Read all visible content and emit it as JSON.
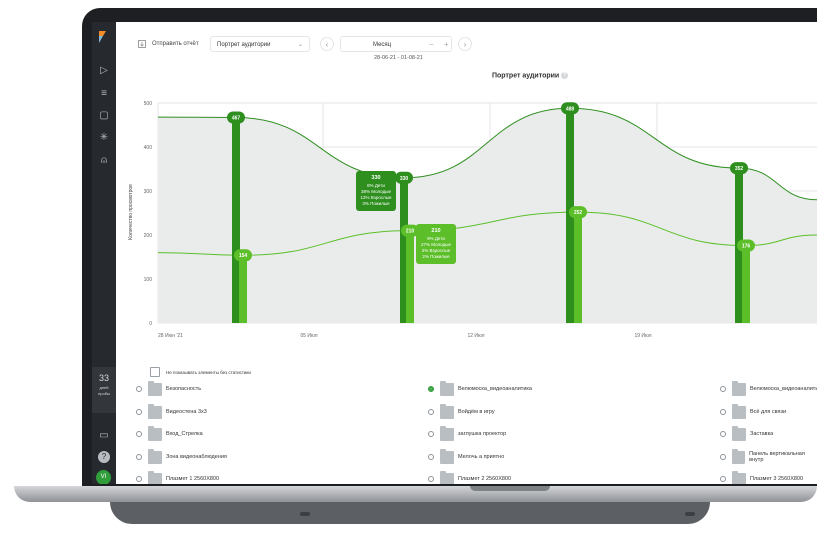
{
  "sidebar": {
    "items": [
      {
        "icon": "play-icon"
      },
      {
        "icon": "filter-icon"
      },
      {
        "icon": "document-icon"
      },
      {
        "icon": "loader-icon"
      },
      {
        "icon": "user-icon"
      }
    ],
    "trial": {
      "days": "33",
      "label_line1": "дней",
      "label_line2": "пробы"
    },
    "bottom": [
      {
        "icon": "monitor-icon"
      },
      {
        "icon": "help-icon"
      }
    ],
    "avatar_initials": "VI"
  },
  "toolbar": {
    "send_report": "Отправить отчёт",
    "report_select": "Портрет аудитории",
    "period": "Месяц",
    "date_range": "28-06-21 - 01-08-21"
  },
  "chart_data": {
    "type": "line",
    "title": "Портрет аудитории",
    "ylabel": "Количество просмотров",
    "ylim": [
      0,
      500
    ],
    "yticks": [
      0,
      100,
      200,
      300,
      400,
      500
    ],
    "xticks": [
      "28 Июн '21",
      "05 Июл",
      "12 Июл",
      "19 Июл"
    ],
    "series": [
      {
        "values": [
          467,
          330,
          488,
          352
        ]
      },
      {
        "values": [
          154,
          210,
          252,
          176
        ]
      }
    ],
    "annotations": [
      {
        "value": "330",
        "lines": [
          "8% Дети",
          "38% Молодые",
          "12% Взрослые",
          "3% Пожилые"
        ]
      },
      {
        "value": "210",
        "lines": [
          "9% Дети",
          "27% Молодые",
          "2% Взрослые",
          "2% Пожилые"
        ]
      }
    ],
    "colors": {
      "upper": "#2e8f1f",
      "lower": "#5cbf2a",
      "fill": "#e9ecea",
      "grid": "#c9cdd1"
    }
  },
  "hide_empty_label": "Не показывать элементы без статистики",
  "items": [
    [
      "Безопасность",
      "Велюмоска_видеоаналитика",
      "Велюмоска_видеоаналитика"
    ],
    [
      "Видеостена 3х3",
      "Войдём в игру",
      "Всё для связи"
    ],
    [
      "Вход_Стрелка",
      "заглушка проектор",
      "Заставка"
    ],
    [
      "Зона видеонаблюдения",
      "Мелочь а приятно",
      "Панель вертикальная внутр"
    ],
    [
      "Плазмет 1 2560Х800",
      "Плазмет 2 2560Х800",
      "Плазмет 3 2560Х800"
    ]
  ],
  "selected_item": "Велюмоска_видеоаналитика"
}
